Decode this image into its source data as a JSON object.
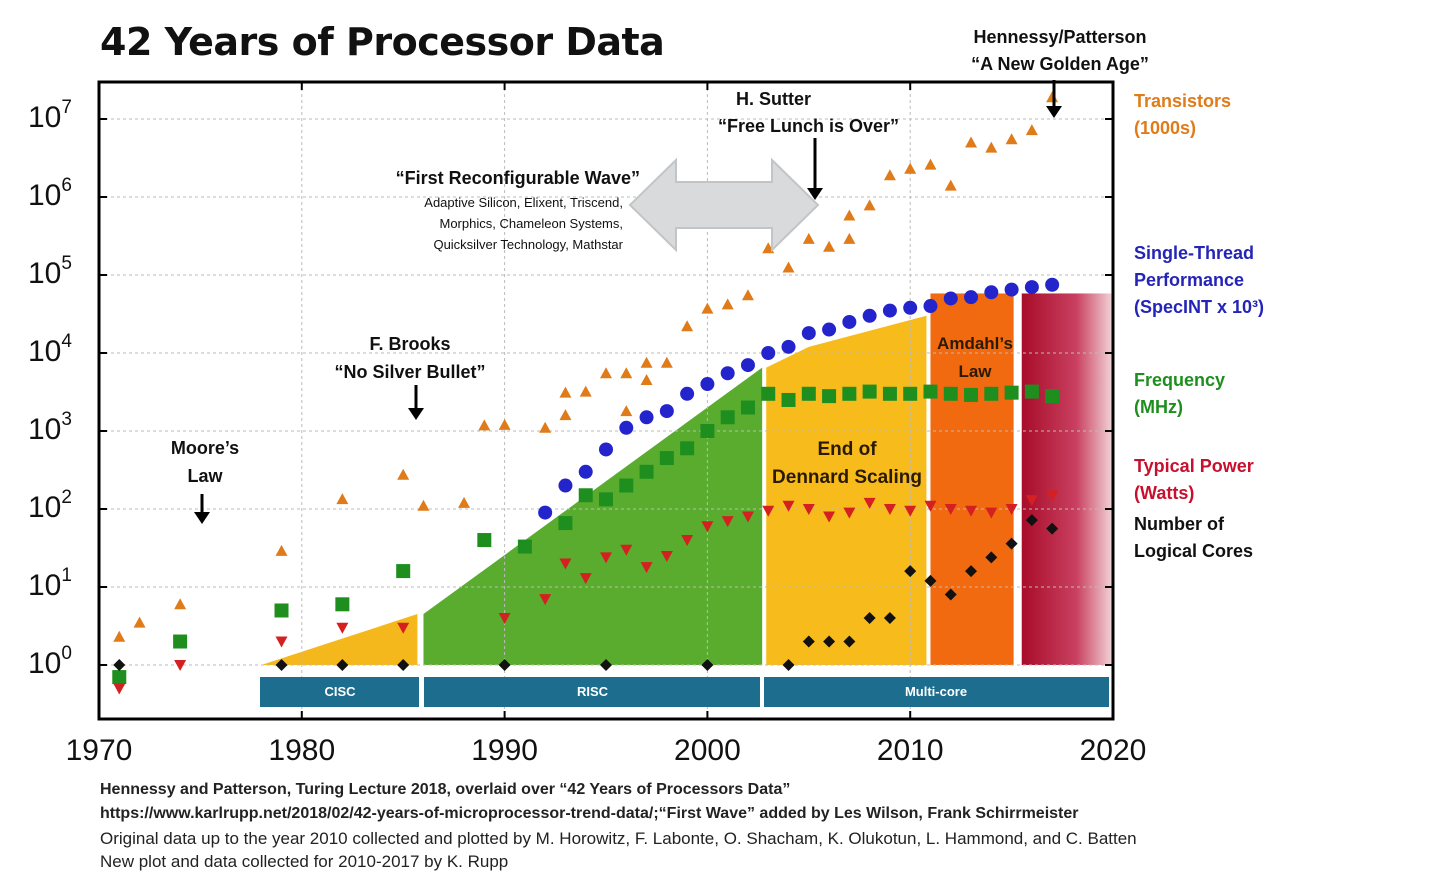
{
  "title": "42 Years of Processor Data",
  "legend": {
    "transistors": [
      "Transistors",
      "(1000s)"
    ],
    "performance": [
      "Single-Thread",
      "Performance",
      "(SpecINT x 10³)"
    ],
    "frequency": [
      "Frequency",
      "(MHz)"
    ],
    "power": [
      "Typical Power",
      "(Watts)"
    ],
    "cores": [
      "Number of",
      "Logical Cores"
    ]
  },
  "colors": {
    "transistors": "#e07b1a",
    "performance": "#2424cc",
    "frequency": "#1e8f1e",
    "power": "#d42020",
    "cores": "#111111",
    "cisc_region": "#f5b81c",
    "risc_region": "#5aac2e",
    "dennard_region": "#f8bb1c",
    "amdahl_region": "#f26a10",
    "golden_region": "#b01030",
    "era_bar": "#1d6e8e"
  },
  "annotations": {
    "moores_law": [
      "Moore’s",
      "Law"
    ],
    "brooks": [
      "F. Brooks",
      "“No Silver Bullet”"
    ],
    "reconfig_title": "“First Reconfigurable Wave”",
    "reconfig_companies": [
      "Adaptive Silicon, Elixent, Triscend,",
      "Morphics, Chameleon Systems,",
      "Quicksilver Technology, Mathstar"
    ],
    "sutter": [
      "H. Sutter",
      "“Free Lunch is Over”"
    ],
    "hennessy": [
      "Hennessy/Patterson",
      "“A New Golden Age”"
    ],
    "dennard": [
      "End of",
      "Dennard Scaling"
    ],
    "amdahl": [
      "Amdahl’s",
      "Law"
    ]
  },
  "eras": [
    "CISC",
    "RISC",
    "Multi-core"
  ],
  "captions": [
    "Hennessy and Patterson, Turing Lecture 2018, overlaid over “42 Years of Processors Data”",
    "https://www.karlrupp.net/2018/02/42-years-of-microprocessor-trend-data/;“First Wave” added by Les Wilson, Frank Schirrmeister",
    "Original data up to the year 2010 collected and plotted by M. Horowitz, F. Labonte, O. Shacham, K. Olukotun, L. Hammond, and C. Batten",
    "New plot and data collected for 2010-2017 by K. Rupp"
  ],
  "chart_data": {
    "type": "scatter",
    "title": "42 Years of Processor Data",
    "y_scale": "log",
    "xlim": [
      1970,
      2020
    ],
    "ylim_exponent": [
      0,
      7
    ],
    "x_ticks": [
      "1970",
      "1980",
      "1990",
      "2000",
      "2010",
      "2020"
    ],
    "y_ticks": [
      "10",
      "10",
      "10",
      "10",
      "10",
      "10",
      "10",
      "10"
    ],
    "y_tick_exponents": [
      "0",
      "1",
      "2",
      "3",
      "4",
      "5",
      "6",
      "7"
    ],
    "grid": true,
    "legend_placement": "right",
    "series": [
      {
        "name": "Transistors (1000s)",
        "marker": "triangle-up",
        "points": [
          [
            1971,
            2.3
          ],
          [
            1972,
            3.5
          ],
          [
            1974,
            6
          ],
          [
            1979,
            29
          ],
          [
            1982,
            134
          ],
          [
            1985,
            275
          ],
          [
            1986,
            110
          ],
          [
            1988,
            120
          ],
          [
            1989,
            1180
          ],
          [
            1990,
            1200
          ],
          [
            1992,
            1100
          ],
          [
            1993,
            3100
          ],
          [
            1993,
            1600
          ],
          [
            1994,
            3200
          ],
          [
            1995,
            5500
          ],
          [
            1996,
            5500
          ],
          [
            1996,
            1800
          ],
          [
            1997,
            7500
          ],
          [
            1997,
            4500
          ],
          [
            1998,
            7500
          ],
          [
            1999,
            22000
          ],
          [
            2000,
            37000
          ],
          [
            2001,
            42000
          ],
          [
            2002,
            55000
          ],
          [
            2003,
            220000
          ],
          [
            2004,
            125000
          ],
          [
            2005,
            290000
          ],
          [
            2006,
            230000
          ],
          [
            2007,
            580000
          ],
          [
            2007,
            291000
          ],
          [
            2008,
            781000
          ],
          [
            2009,
            1900000
          ],
          [
            2010,
            2300000
          ],
          [
            2011,
            2600000
          ],
          [
            2012,
            1400000
          ],
          [
            2013,
            5000000
          ],
          [
            2014,
            4300000
          ],
          [
            2015,
            5500000
          ],
          [
            2016,
            7200000
          ],
          [
            2017,
            19000000
          ]
        ]
      },
      {
        "name": "Single-Thread Performance (SpecINT x 10³)",
        "marker": "circle",
        "points": [
          [
            1992,
            90
          ],
          [
            1993,
            200
          ],
          [
            1994,
            300
          ],
          [
            1995,
            580
          ],
          [
            1996,
            1100
          ],
          [
            1997,
            1500
          ],
          [
            1998,
            1800
          ],
          [
            1999,
            3000
          ],
          [
            2000,
            4000
          ],
          [
            2001,
            5500
          ],
          [
            2002,
            7000
          ],
          [
            2003,
            10000
          ],
          [
            2004,
            12000
          ],
          [
            2005,
            18000
          ],
          [
            2006,
            20000
          ],
          [
            2007,
            25000
          ],
          [
            2008,
            30000
          ],
          [
            2009,
            35000
          ],
          [
            2010,
            38000
          ],
          [
            2011,
            40000
          ],
          [
            2012,
            50000
          ],
          [
            2013,
            52000
          ],
          [
            2014,
            60000
          ],
          [
            2015,
            65000
          ],
          [
            2016,
            70000
          ],
          [
            2017,
            75000
          ]
        ]
      },
      {
        "name": "Frequency (MHz)",
        "marker": "square",
        "points": [
          [
            1971,
            0.7
          ],
          [
            1974,
            2
          ],
          [
            1979,
            5
          ],
          [
            1982,
            6
          ],
          [
            1985,
            16
          ],
          [
            1989,
            40
          ],
          [
            1991,
            33
          ],
          [
            1993,
            66
          ],
          [
            1994,
            150
          ],
          [
            1995,
            133
          ],
          [
            1996,
            200
          ],
          [
            1997,
            300
          ],
          [
            1998,
            450
          ],
          [
            1999,
            600
          ],
          [
            2000,
            1000
          ],
          [
            2001,
            1500
          ],
          [
            2002,
            2000
          ],
          [
            2003,
            3000
          ],
          [
            2004,
            2500
          ],
          [
            2005,
            3000
          ],
          [
            2006,
            2800
          ],
          [
            2007,
            3000
          ],
          [
            2008,
            3200
          ],
          [
            2009,
            3000
          ],
          [
            2010,
            3000
          ],
          [
            2011,
            3200
          ],
          [
            2012,
            3000
          ],
          [
            2013,
            2900
          ],
          [
            2014,
            3000
          ],
          [
            2015,
            3100
          ],
          [
            2016,
            3200
          ],
          [
            2017,
            2800
          ]
        ]
      },
      {
        "name": "Typical Power (Watts)",
        "marker": "triangle-down",
        "points": [
          [
            1971,
            0.5
          ],
          [
            1974,
            1
          ],
          [
            1979,
            2
          ],
          [
            1982,
            3
          ],
          [
            1985,
            3
          ],
          [
            1990,
            4
          ],
          [
            1992,
            7
          ],
          [
            1993,
            20
          ],
          [
            1994,
            13
          ],
          [
            1995,
            24
          ],
          [
            1996,
            30
          ],
          [
            1997,
            18
          ],
          [
            1998,
            25
          ],
          [
            1999,
            40
          ],
          [
            2000,
            60
          ],
          [
            2001,
            70
          ],
          [
            2002,
            80
          ],
          [
            2003,
            95
          ],
          [
            2004,
            110
          ],
          [
            2005,
            100
          ],
          [
            2006,
            80
          ],
          [
            2007,
            90
          ],
          [
            2008,
            120
          ],
          [
            2009,
            100
          ],
          [
            2010,
            95
          ],
          [
            2011,
            110
          ],
          [
            2012,
            100
          ],
          [
            2013,
            95
          ],
          [
            2014,
            90
          ],
          [
            2015,
            100
          ],
          [
            2016,
            130
          ],
          [
            2017,
            150
          ]
        ]
      },
      {
        "name": "Number of Logical Cores",
        "marker": "diamond",
        "points": [
          [
            1971,
            1
          ],
          [
            1979,
            1
          ],
          [
            1982,
            1
          ],
          [
            1985,
            1
          ],
          [
            1990,
            1
          ],
          [
            1995,
            1
          ],
          [
            2000,
            1
          ],
          [
            2004,
            1
          ],
          [
            2005,
            2
          ],
          [
            2006,
            2
          ],
          [
            2007,
            2
          ],
          [
            2008,
            4
          ],
          [
            2009,
            4
          ],
          [
            2010,
            16
          ],
          [
            2011,
            12
          ],
          [
            2012,
            8
          ],
          [
            2013,
            16
          ],
          [
            2014,
            24
          ],
          [
            2015,
            36
          ],
          [
            2016,
            72
          ],
          [
            2017,
            56
          ]
        ]
      }
    ],
    "regions": [
      {
        "label": "CISC",
        "x": [
          1978,
          1986
        ]
      },
      {
        "label": "RISC",
        "x": [
          1986,
          2003
        ]
      },
      {
        "label": "End of Dennard Scaling",
        "x": [
          2003,
          2011
        ]
      },
      {
        "label": "Amdahl’s Law",
        "x": [
          2011,
          2015
        ]
      },
      {
        "label": "Hennessy/Patterson “A New Golden Age”",
        "x": [
          2015,
          2020
        ]
      }
    ]
  }
}
